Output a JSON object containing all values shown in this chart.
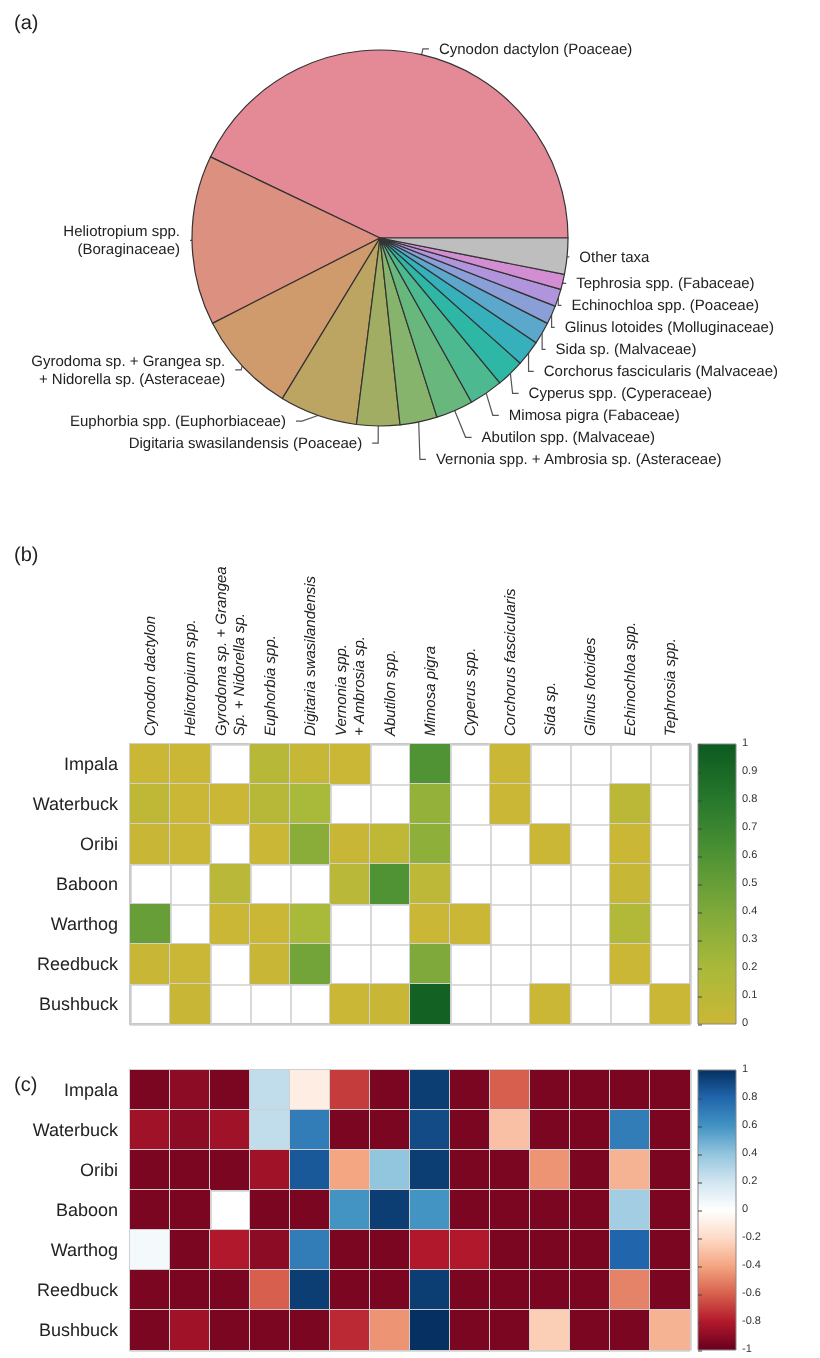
{
  "chart_data": [
    {
      "type": "pie",
      "title": "(a)",
      "categories": [
        "Cynodon dactylon (Poaceae)",
        "Heliotropium spp. (Boraginaceae)",
        "Gyrodoma sp. + Grangea sp. + Nidorella sp. (Asteraceae)",
        "Euphorbia spp. (Euphorbiaceae)",
        "Digitaria swasilandensis (Poaceae)",
        "Vernonia spp. + Ambrosia sp. (Asteraceae)",
        "Abutilon spp. (Malvaceae)",
        "Mimosa pigra (Fabaceae)",
        "Cyperus spp. (Cyperaceae)",
        "Corchorus fascicularis (Malvaceae)",
        "Sida sp. (Malvaceae)",
        "Glinus lotoides (Molluginaceae)",
        "Echinochloa spp. (Poaceae)",
        "Tephrosia spp. (Fabaceae)",
        "Other taxa"
      ],
      "values": [
        42.9,
        14.6,
        8.8,
        6.7,
        3.7,
        3.2,
        3.2,
        2.9,
        2.4,
        2.2,
        1.9,
        1.6,
        1.5,
        1.3,
        3.1
      ],
      "colors": [
        "#e48a97",
        "#dc907f",
        "#d09b6c",
        "#bca463",
        "#a1ad63",
        "#86b46c",
        "#68b87e",
        "#4cb991",
        "#2fb7a5",
        "#36b1bb",
        "#5ba8cc",
        "#8a9fd8",
        "#b095dc",
        "#d38dd2",
        "#bebebe"
      ]
    },
    {
      "type": "heatmap",
      "title": "(b)",
      "categories": [
        "Cynodon dactylon",
        "Heliotropium spp.",
        "Gyrodoma sp. + Grangea Sp. + Nidorella sp.",
        "Euphorbia spp.",
        "Digitaria swasilandensis",
        "Vernonia spp. + Ambrosia sp.",
        "Abutilon spp.",
        "Mimosa pigra",
        "Cyperus spp.",
        "Corchorus fascicularis",
        "Sida sp.",
        "Glinus lotoides",
        "Echinochloa spp.",
        "Tephrosia spp."
      ],
      "y_categories": [
        "Impala",
        "Waterbuck",
        "Oribi",
        "Baboon",
        "Warthog",
        "Reedbuck",
        "Bushbuck"
      ],
      "cells": [
        [
          0.01,
          0.01,
          null,
          0.12,
          0.03,
          0.01,
          null,
          0.6,
          null,
          0.01,
          null,
          null,
          null,
          null
        ],
        [
          0.07,
          0.01,
          0.01,
          0.12,
          0.2,
          null,
          null,
          0.3,
          null,
          0.01,
          null,
          null,
          0.09,
          null
        ],
        [
          0.02,
          0.01,
          null,
          0.01,
          0.35,
          0.02,
          0.07,
          0.33,
          null,
          null,
          0.01,
          null,
          0.01,
          null
        ],
        [
          null,
          null,
          0.1,
          null,
          null,
          0.1,
          0.6,
          0.08,
          null,
          null,
          null,
          null,
          0.03,
          null
        ],
        [
          0.5,
          null,
          0.01,
          0.01,
          0.2,
          null,
          null,
          0.01,
          0.01,
          null,
          null,
          null,
          0.15,
          null
        ],
        [
          0.02,
          0.01,
          null,
          0.02,
          0.45,
          null,
          null,
          0.4,
          null,
          null,
          null,
          null,
          0.01,
          null
        ],
        [
          null,
          0.02,
          null,
          null,
          null,
          0.01,
          0.02,
          0.95,
          null,
          null,
          0.01,
          null,
          null,
          0.01
        ]
      ],
      "clim": [
        0,
        1
      ],
      "cticks": [
        0,
        0.1,
        0.2,
        0.3,
        0.4,
        0.5,
        0.6,
        0.7,
        0.8,
        0.9,
        1
      ]
    },
    {
      "type": "heatmap",
      "title": "(c)",
      "categories": [
        null,
        null,
        null,
        null,
        null,
        null,
        null,
        null,
        null,
        null,
        null,
        null,
        null,
        null
      ],
      "y_categories": [
        "Impala",
        "Waterbuck",
        "Oribi",
        "Baboon",
        "Warthog",
        "Reedbuck",
        "Bushbuck"
      ],
      "cells": [
        [
          -0.95,
          -0.9,
          -0.95,
          0.25,
          -0.1,
          -0.7,
          -0.95,
          0.95,
          -0.95,
          -0.6,
          -0.95,
          -0.95,
          -0.95,
          -0.95
        ],
        [
          -0.85,
          -0.9,
          -0.85,
          0.25,
          0.7,
          -0.95,
          -0.95,
          0.9,
          -0.95,
          -0.3,
          -0.95,
          -0.95,
          0.7,
          -0.95
        ],
        [
          -0.95,
          -0.95,
          -0.95,
          -0.85,
          0.85,
          -0.4,
          0.4,
          0.95,
          -0.95,
          -0.95,
          -0.45,
          -0.95,
          -0.35,
          -0.95
        ],
        [
          -0.95,
          -0.95,
          null,
          -0.95,
          -0.95,
          0.6,
          0.95,
          0.6,
          -0.95,
          -0.95,
          -0.95,
          -0.95,
          0.35,
          -0.95
        ],
        [
          0.05,
          -0.95,
          -0.8,
          -0.9,
          0.7,
          -0.95,
          -0.95,
          -0.8,
          -0.8,
          -0.95,
          -0.95,
          -0.95,
          0.8,
          -0.95
        ],
        [
          -0.95,
          -0.95,
          -0.95,
          -0.6,
          0.95,
          -0.95,
          -0.95,
          0.95,
          -0.95,
          -0.95,
          -0.95,
          -0.95,
          -0.5,
          -0.95
        ],
        [
          -0.95,
          -0.85,
          -0.95,
          -0.95,
          -0.95,
          -0.75,
          -0.45,
          1,
          -0.95,
          -0.95,
          -0.25,
          -0.95,
          -0.95,
          -0.35
        ]
      ],
      "clim": [
        -1,
        1
      ],
      "cticks": [
        -1,
        -0.8,
        -0.6,
        -0.4,
        -0.2,
        0,
        0.2,
        0.4,
        0.6,
        0.8,
        1
      ],
      "tick_labels": "y"
    }
  ]
}
